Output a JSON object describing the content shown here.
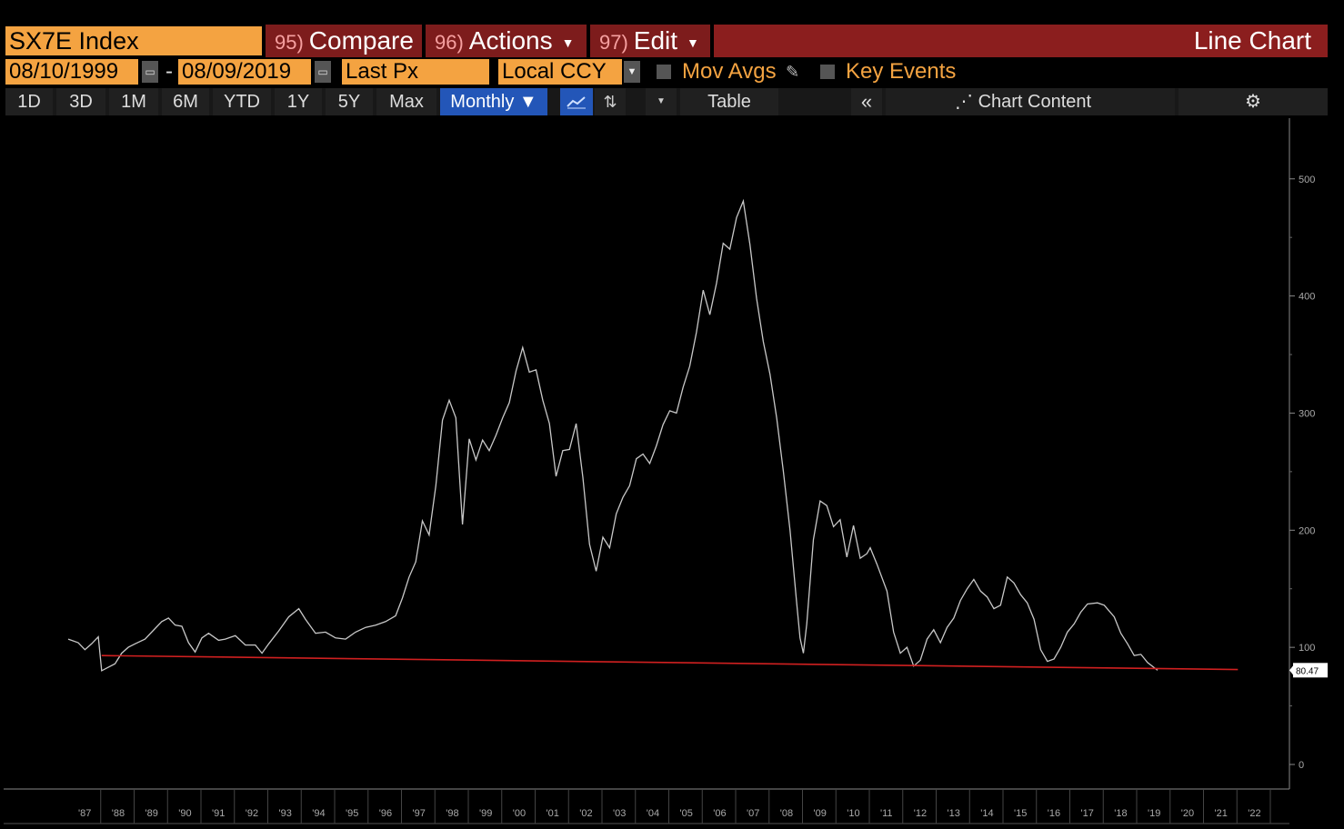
{
  "toolbar": {
    "ticker": "SX7E Index",
    "compare": {
      "num": "95)",
      "label": "Compare"
    },
    "actions": {
      "num": "96)",
      "label": "Actions"
    },
    "edit": {
      "num": "97)",
      "label": "Edit"
    },
    "chart_title": "Line Chart"
  },
  "settings": {
    "start_date": "08/10/1999",
    "end_date": "08/09/2019",
    "separator": "-",
    "field": "Last Px",
    "currency": "Local CCY",
    "mov_avgs": "Mov Avgs",
    "key_events": "Key Events"
  },
  "periods": {
    "p1": "1D",
    "p2": "3D",
    "p3": "1M",
    "p4": "6M",
    "p5": "YTD",
    "p6": "1Y",
    "p7": "5Y",
    "p8": "Max",
    "frequency": "Monthly",
    "table": "Table",
    "chart_content": "Chart Content"
  },
  "chart_data": {
    "type": "line",
    "y_ticks": [
      0,
      100,
      200,
      300,
      400,
      500
    ],
    "x_ticks": [
      "'87",
      "'88",
      "'89",
      "'90",
      "'91",
      "'92",
      "'93",
      "'94",
      "'95",
      "'96",
      "'97",
      "'98",
      "'99",
      "'00",
      "'01",
      "'02",
      "'03",
      "'04",
      "'05",
      "'06",
      "'07",
      "'08",
      "'09",
      "'10",
      "'11",
      "'12",
      "'13",
      "'14",
      "'15",
      "'16",
      "'17",
      "'18",
      "'19",
      "'20",
      "'21",
      "'22"
    ],
    "xlim": [
      1987,
      2022.3
    ],
    "ylim": [
      -20,
      550
    ],
    "last_value": "80.47",
    "series": [
      {
        "color": "#c8c8c8",
        "points": [
          [
            1987.0,
            107
          ],
          [
            1987.3,
            104
          ],
          [
            1987.5,
            98
          ],
          [
            1987.7,
            103
          ],
          [
            1987.9,
            109
          ],
          [
            1988.0,
            80
          ],
          [
            1988.2,
            83
          ],
          [
            1988.4,
            86
          ],
          [
            1988.6,
            95
          ],
          [
            1988.8,
            100
          ],
          [
            1989.0,
            103
          ],
          [
            1989.3,
            107
          ],
          [
            1989.6,
            116
          ],
          [
            1989.8,
            122
          ],
          [
            1990.0,
            125
          ],
          [
            1990.2,
            119
          ],
          [
            1990.4,
            118
          ],
          [
            1990.6,
            104
          ],
          [
            1990.8,
            96
          ],
          [
            1991.0,
            108
          ],
          [
            1991.2,
            112
          ],
          [
            1991.5,
            106
          ],
          [
            1991.7,
            107
          ],
          [
            1992.0,
            110
          ],
          [
            1992.3,
            102
          ],
          [
            1992.6,
            102
          ],
          [
            1992.8,
            95
          ],
          [
            1993.0,
            103
          ],
          [
            1993.3,
            114
          ],
          [
            1993.6,
            126
          ],
          [
            1993.9,
            133
          ],
          [
            1994.1,
            124
          ],
          [
            1994.4,
            112
          ],
          [
            1994.7,
            113
          ],
          [
            1995.0,
            108
          ],
          [
            1995.3,
            107
          ],
          [
            1995.6,
            113
          ],
          [
            1995.9,
            117
          ],
          [
            1996.2,
            119
          ],
          [
            1996.5,
            122
          ],
          [
            1996.8,
            127
          ],
          [
            1997.0,
            142
          ],
          [
            1997.2,
            160
          ],
          [
            1997.4,
            173
          ],
          [
            1997.6,
            208
          ],
          [
            1997.8,
            196
          ],
          [
            1998.0,
            238
          ],
          [
            1998.2,
            294
          ],
          [
            1998.4,
            311
          ],
          [
            1998.6,
            296
          ],
          [
            1998.8,
            205
          ],
          [
            1998.9,
            241
          ],
          [
            1999.0,
            278
          ],
          [
            1999.2,
            260
          ],
          [
            1999.4,
            277
          ],
          [
            1999.6,
            268
          ],
          [
            1999.8,
            281
          ],
          [
            2000.0,
            296
          ],
          [
            2000.2,
            309
          ],
          [
            2000.4,
            336
          ],
          [
            2000.6,
            356
          ],
          [
            2000.8,
            335
          ],
          [
            2001.0,
            337
          ],
          [
            2001.2,
            311
          ],
          [
            2001.4,
            291
          ],
          [
            2001.6,
            246
          ],
          [
            2001.8,
            268
          ],
          [
            2002.0,
            269
          ],
          [
            2002.2,
            291
          ],
          [
            2002.4,
            245
          ],
          [
            2002.6,
            188
          ],
          [
            2002.8,
            165
          ],
          [
            2003.0,
            194
          ],
          [
            2003.2,
            185
          ],
          [
            2003.4,
            214
          ],
          [
            2003.6,
            228
          ],
          [
            2003.8,
            238
          ],
          [
            2004.0,
            261
          ],
          [
            2004.2,
            265
          ],
          [
            2004.4,
            257
          ],
          [
            2004.6,
            272
          ],
          [
            2004.8,
            290
          ],
          [
            2005.0,
            302
          ],
          [
            2005.2,
            300
          ],
          [
            2005.4,
            322
          ],
          [
            2005.6,
            340
          ],
          [
            2005.8,
            369
          ],
          [
            2006.0,
            405
          ],
          [
            2006.2,
            384
          ],
          [
            2006.4,
            411
          ],
          [
            2006.6,
            445
          ],
          [
            2006.8,
            440
          ],
          [
            2007.0,
            467
          ],
          [
            2007.2,
            481
          ],
          [
            2007.4,
            444
          ],
          [
            2007.6,
            398
          ],
          [
            2007.8,
            361
          ],
          [
            2008.0,
            333
          ],
          [
            2008.2,
            296
          ],
          [
            2008.4,
            250
          ],
          [
            2008.6,
            200
          ],
          [
            2008.8,
            138
          ],
          [
            2008.9,
            108
          ],
          [
            2009.0,
            95
          ],
          [
            2009.1,
            120
          ],
          [
            2009.3,
            192
          ],
          [
            2009.5,
            225
          ],
          [
            2009.7,
            221
          ],
          [
            2009.9,
            203
          ],
          [
            2010.1,
            209
          ],
          [
            2010.3,
            177
          ],
          [
            2010.5,
            204
          ],
          [
            2010.7,
            176
          ],
          [
            2010.9,
            180
          ],
          [
            2011.0,
            185
          ],
          [
            2011.2,
            171
          ],
          [
            2011.5,
            148
          ],
          [
            2011.7,
            113
          ],
          [
            2011.9,
            95
          ],
          [
            2012.1,
            100
          ],
          [
            2012.3,
            84
          ],
          [
            2012.5,
            89
          ],
          [
            2012.7,
            107
          ],
          [
            2012.9,
            115
          ],
          [
            2013.1,
            104
          ],
          [
            2013.3,
            117
          ],
          [
            2013.5,
            125
          ],
          [
            2013.7,
            140
          ],
          [
            2013.9,
            150
          ],
          [
            2014.1,
            158
          ],
          [
            2014.3,
            148
          ],
          [
            2014.5,
            143
          ],
          [
            2014.7,
            133
          ],
          [
            2014.9,
            136
          ],
          [
            2015.1,
            160
          ],
          [
            2015.3,
            155
          ],
          [
            2015.5,
            145
          ],
          [
            2015.7,
            138
          ],
          [
            2015.9,
            124
          ],
          [
            2016.1,
            98
          ],
          [
            2016.3,
            88
          ],
          [
            2016.5,
            90
          ],
          [
            2016.7,
            100
          ],
          [
            2016.9,
            113
          ],
          [
            2017.1,
            120
          ],
          [
            2017.3,
            130
          ],
          [
            2017.5,
            137
          ],
          [
            2017.8,
            138
          ],
          [
            2018.0,
            136
          ],
          [
            2018.3,
            126
          ],
          [
            2018.5,
            112
          ],
          [
            2018.7,
            103
          ],
          [
            2018.9,
            93
          ],
          [
            2019.1,
            94
          ],
          [
            2019.3,
            87
          ],
          [
            2019.6,
            80.47
          ]
        ]
      },
      {
        "color": "#d02020",
        "points": [
          [
            1988.0,
            93
          ],
          [
            2022.0,
            81
          ]
        ]
      }
    ]
  }
}
